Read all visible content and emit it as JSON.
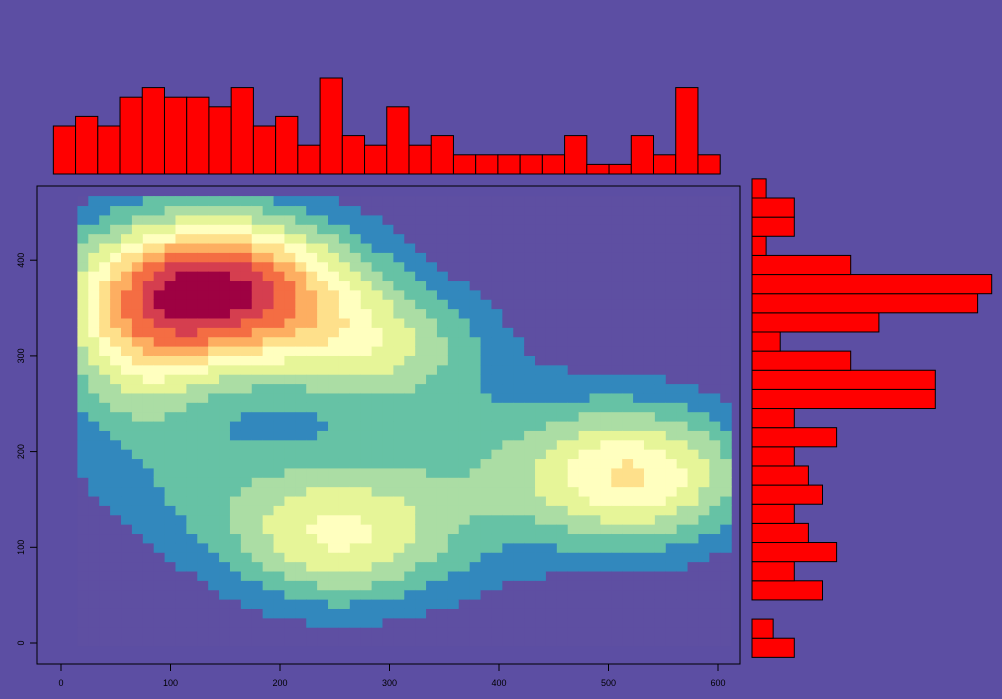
{
  "colors": {
    "background": "#5c4ea3",
    "bar_fill": "#ff0000",
    "bar_stroke": "#000000",
    "density_palette": [
      "#5e4fa2",
      "#3288bd",
      "#66c2a5",
      "#abdda4",
      "#e6f598",
      "#ffffbf",
      "#fee08b",
      "#fdae61",
      "#f46d43",
      "#d53e4f",
      "#9e0142"
    ]
  },
  "chart_data": [
    {
      "type": "heatmap",
      "description_kind": "2d-density",
      "xlim": [
        0,
        610
      ],
      "ylim": [
        0,
        460
      ],
      "x_ticks": [
        0,
        100,
        200,
        300,
        400,
        500,
        600
      ],
      "y_ticks": [
        0,
        100,
        200,
        300,
        400
      ],
      "density_centers": [
        {
          "x": 145,
          "y": 370,
          "sx": 85,
          "sy": 55,
          "weight": 1.0
        },
        {
          "x": 70,
          "y": 300,
          "sx": 55,
          "sy": 70,
          "weight": 0.35
        },
        {
          "x": 290,
          "y": 310,
          "sx": 70,
          "sy": 45,
          "weight": 0.35
        },
        {
          "x": 255,
          "y": 105,
          "sx": 75,
          "sy": 50,
          "weight": 0.42
        },
        {
          "x": 530,
          "y": 175,
          "sx": 70,
          "sy": 50,
          "weight": 0.5
        },
        {
          "x": 400,
          "y": 180,
          "sx": 120,
          "sy": 70,
          "weight": 0.22
        },
        {
          "x": 150,
          "y": 160,
          "sx": 90,
          "sy": 50,
          "weight": 0.16
        }
      ],
      "grid_xrange": [
        15,
        612
      ],
      "grid_yrange": [
        -3,
        467
      ]
    },
    {
      "type": "bar",
      "orientation": "vertical",
      "description_kind": "histogram-x",
      "bin_width": 20.3,
      "bin_start": -7,
      "counts": [
        5,
        6,
        5,
        8,
        9,
        8,
        8,
        7,
        9,
        5,
        6,
        3,
        10,
        4,
        3,
        7,
        3,
        4,
        2,
        2,
        2,
        2,
        2,
        4,
        1,
        1,
        4,
        2,
        9,
        2
      ]
    },
    {
      "type": "bar",
      "orientation": "horizontal",
      "description_kind": "histogram-y",
      "bin_width": 20,
      "bin_start": -15,
      "counts": [
        3,
        1.5,
        0,
        5,
        3,
        6,
        4,
        3,
        5,
        4,
        3,
        6,
        3,
        13,
        13,
        7,
        2,
        9,
        16,
        17,
        7,
        1,
        3,
        3,
        1
      ]
    }
  ]
}
